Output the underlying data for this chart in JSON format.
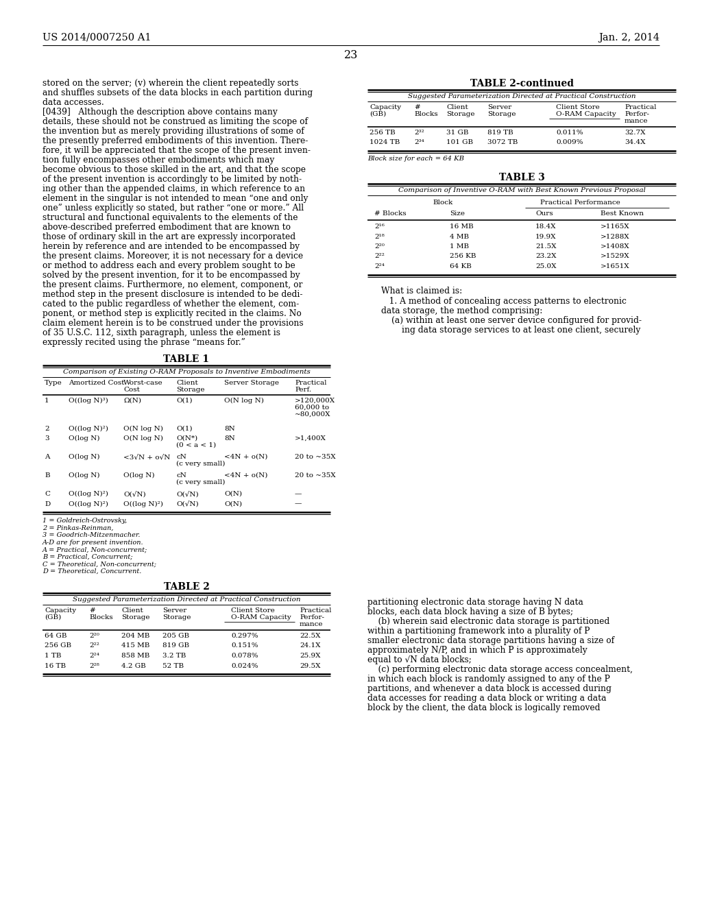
{
  "bg_color": "#ffffff",
  "header_left": "US 2014/0007250 A1",
  "header_right": "Jan. 2, 2014",
  "page_number": "23",
  "left_col_lines": [
    "stored on the server; (v) wherein the client repeatedly sorts",
    "and shuffles subsets of the data blocks in each partition during",
    "data accesses.",
    "[0439]   Although the description above contains many",
    "details, these should not be construed as limiting the scope of",
    "the invention but as merely providing illustrations of some of",
    "the presently preferred embodiments of this invention. There-",
    "fore, it will be appreciated that the scope of the present inven-",
    "tion fully encompasses other embodiments which may",
    "become obvious to those skilled in the art, and that the scope",
    "of the present invention is accordingly to be limited by noth-",
    "ing other than the appended claims, in which reference to an",
    "element in the singular is not intended to mean “one and only",
    "one” unless explicitly so stated, but rather “one or more.” All",
    "structural and functional equivalents to the elements of the",
    "above-described preferred embodiment that are known to",
    "those of ordinary skill in the art are expressly incorporated",
    "herein by reference and are intended to be encompassed by",
    "the present claims. Moreover, it is not necessary for a device",
    "or method to address each and every problem sought to be",
    "solved by the present invention, for it to be encompassed by",
    "the present claims. Furthermore, no element, component, or",
    "method step in the present disclosure is intended to be dedi-",
    "cated to the public regardless of whether the element, com-",
    "ponent, or method step is explicitly recited in the claims. No",
    "claim element herein is to be construed under the provisions",
    "of 35 U.S.C. 112, sixth paragraph, unless the element is",
    "expressly recited using the phrase “means for.”"
  ],
  "t1_title": "TABLE 1",
  "t1_sub": "Comparison of Existing O-RAM Proposals to Inventive Embodiments",
  "t1_rows": [
    [
      "1",
      "O((log N)³)",
      "Ω(N)",
      "O(1)",
      "O(N log N)",
      ">120,000X\n60,000 to\n~80,000X"
    ],
    [
      "2",
      "O((log N)²)",
      "O(N log N)",
      "O(1)",
      "8N",
      ""
    ],
    [
      "3",
      "O(log N)",
      "O(N log N)",
      "O(N*)\n(0 < a < 1)",
      "8N",
      ">1,400X"
    ],
    [
      "A",
      "O(log N)",
      "<3√N + o√N",
      "cN\n(c very small)",
      "<4N + o(N)",
      "20 to ~35X"
    ],
    [
      "B",
      "O(log N)",
      "O(log N)",
      "cN\n(c very small)",
      "<4N + o(N)",
      "20 to ~35X"
    ],
    [
      "C",
      "O((log N)²)",
      "O(√N)",
      "O(√N)",
      "O(N)",
      "—"
    ],
    [
      "D",
      "O((log N)²)",
      "O((log N)²)",
      "O(√N)",
      "O(N)",
      "—"
    ]
  ],
  "t1_footnotes": [
    "1 = Goldreich-Ostrovsky,",
    "2 = Pinkas-Reinman,",
    "3 = Goodrich-Mitzenmacher.",
    "A-D are for present invention.",
    "A = Practical, Non-concurrent;",
    "B = Practical, Concurrent;",
    "C = Theoretical, Non-concurrent;",
    "D = Theoretical, Concurrent."
  ],
  "t2_title": "TABLE 2",
  "t2_sub": "Suggested Parameterization Directed at Practical Construction",
  "t2_rows": [
    [
      "64 GB",
      "2²⁰",
      "204 MB",
      "205 GB",
      "0.297%",
      "22.5X"
    ],
    [
      "256 GB",
      "2²²",
      "415 MB",
      "819 GB",
      "0.151%",
      "24.1X"
    ],
    [
      "1 TB",
      "2²⁴",
      "858 MB",
      "3.2 TB",
      "0.078%",
      "25.9X"
    ],
    [
      "16 TB",
      "2²⁸",
      "4.2 GB",
      "52 TB",
      "0.024%",
      "29.5X"
    ]
  ],
  "t2c_title": "TABLE 2-continued",
  "t2c_sub": "Suggested Parameterization Directed at Practical Construction",
  "t2c_rows": [
    [
      "256 TB",
      "2³²",
      "31 GB",
      "819 TB",
      "0.011%",
      "32.7X"
    ],
    [
      "1024 TB",
      "2³⁴",
      "101 GB",
      "3072 TB",
      "0.009%",
      "34.4X"
    ]
  ],
  "t2c_footnote": "Block size for each = 64 KB",
  "t3_title": "TABLE 3",
  "t3_sub": "Comparison of Inventive O-RAM with Best Known Previous Proposal",
  "t3_rows": [
    [
      "2¹⁶",
      "16 MB",
      "18.4X",
      ">1165X"
    ],
    [
      "2¹⁸",
      "4 MB",
      "19.9X",
      ">1288X"
    ],
    [
      "2²⁰",
      "1 MB",
      "21.5X",
      ">1408X"
    ],
    [
      "2²²",
      "256 KB",
      "23.2X",
      ">1529X"
    ],
    [
      "2²⁴",
      "64 KB",
      "25.0X",
      ">1651X"
    ]
  ],
  "rc_bottom_text": [
    "partitioning electronic data storage having N data",
    "blocks, each data block having a size of B bytes;",
    "    (b) wherein said electronic data storage is partitioned",
    "within a partitioning framework into a plurality of P",
    "smaller electronic data storage partitions having a size of",
    "approximately N/P, and in which P is approximately",
    "equal to √N data blocks;",
    "    (c) performing electronic data storage access concealment,",
    "in which each block is randomly assigned to any of the P",
    "partitions, and whenever a data block is accessed during",
    "data accesses for reading a data block or writing a data",
    "block by the client, the data block is logically removed"
  ]
}
